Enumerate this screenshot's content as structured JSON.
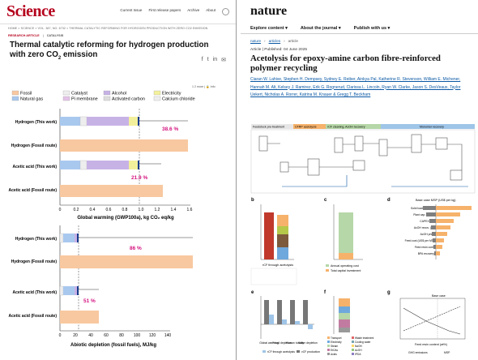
{
  "science": {
    "logo": "Science",
    "nav": [
      "Current Issue",
      "First release papers",
      "Archive",
      "About"
    ],
    "breadcrumb": "HOME > SCIENCE > VOL. 387, NO. 6732 > THERMAL CATALYTIC REFORMING FOR HYDROGEN PRODUCTION WITH ZERO CO2 EMISSION",
    "tag1": "RESEARCH ARTICLE",
    "tag2": "CATALYSIS",
    "title_a": "Thermal catalytic reforming for hydrogen production",
    "title_b": "with zero CO",
    "title_sub": "2",
    "title_c": " emission",
    "meta": "1 2 more | 🔒 Info",
    "legend": [
      "Fossil",
      "Natural gas",
      "Catalyst",
      "Pi membrane",
      "Alcohol",
      "Activated carbon",
      "Electricity",
      "Calcium chloride"
    ],
    "legend_colors": [
      "#f8c8a0",
      "#a9c8ee",
      "#eeeeee",
      "#c7b2e6",
      "#f3f09c"
    ],
    "chart1": {
      "xlabel": "Global warming (GWP100a), kg CO₂ eq/kg",
      "ticks": [
        "0",
        "0.2",
        "0.4",
        "0.6",
        "0.8",
        "1.0",
        "1.2",
        "1.4",
        "1.6"
      ],
      "annot1": "38.6 %",
      "annot2": "21.9 %"
    },
    "chart2": {
      "xlabel": "Abiotic depletion (fossil fuels), MJ/kg",
      "ticks": [
        "0",
        "20",
        "40",
        "60",
        "80",
        "100",
        "120",
        "140"
      ],
      "annot1": "86 %",
      "annot2": "51 %"
    },
    "rows": [
      "Hydrogen (This work)",
      "Hydrogen (Fossil route)",
      "Acetic acid (This work)",
      "Acetic acid (Fossil route)"
    ]
  },
  "nature": {
    "logo": "nature",
    "menu": [
      "Explore content ▾",
      "About the journal ▾",
      "Publish with us ▾"
    ],
    "crumb": [
      "nature",
      "articles",
      "article"
    ],
    "article_meta": "Article | Published: 04 June 2025",
    "title": "Acetolysis for epoxy-amine carbon fibre-reinforced polymer recycling",
    "authors": "Ciaran W. Lahive, Stephen H. Dempsey, Sydney E. Reiber, Ainkya Pal, Katherine R. Stevenson, William E. Michener, Hannah M. Alt, Kelsey J. Ramirez, Erik G. Rognerud, Clarissa L. Lincoln, Ryan W. Clarke, Jason S. DesVeaux, Taylor Uekert, Nicholas A. Rorrer, Katrina M. Knauer & Gregg T. Beckham",
    "fig_a_sections": [
      "Feedstock pre-treatment",
      "CFRP acetolysis",
      "rCF cleaning, AcOH recovery",
      "Monomer recovery"
    ],
    "fig_labels": {
      "b": "b",
      "c": "c",
      "d": "d",
      "e": "e",
      "f": "f",
      "g": "g"
    },
    "panel_d_title": "Base case MSP (US$ per kg)",
    "panel_d_rows": [
      "Solid loading (wt%)",
      "Plant cap. (MT/y)",
      "CAPEX (%)",
      "AcOH recov. (%)",
      "AcOH price",
      "Feed cost (US$ per MT)",
      "Feed resin cont.",
      "BPA recovery"
    ],
    "panel_b_x": "rCF through acetolysis",
    "panel_c_legend": [
      "Annual operating cost",
      "Total capital investment"
    ],
    "panel_e_labels": [
      "Global warming",
      "Fossil depletion",
      "Human toxicity",
      "Water depletion"
    ],
    "panel_e_legend": [
      "rCF through acetolysis",
      "vCF production"
    ],
    "panel_f_items": [
      "Transport",
      "Electricity",
      "Steam",
      "EtOAc",
      "Acids",
      "Waste treatment",
      "Cooling water",
      "NaOH",
      "AcOH",
      "IPDA"
    ],
    "panel_g_legend": [
      "GHG emissions",
      "MSP"
    ],
    "panel_g_x": "Feed resin content (wt%)",
    "panel_g_base": "Base case",
    "colors": {
      "accent": "#0a58a3"
    }
  }
}
